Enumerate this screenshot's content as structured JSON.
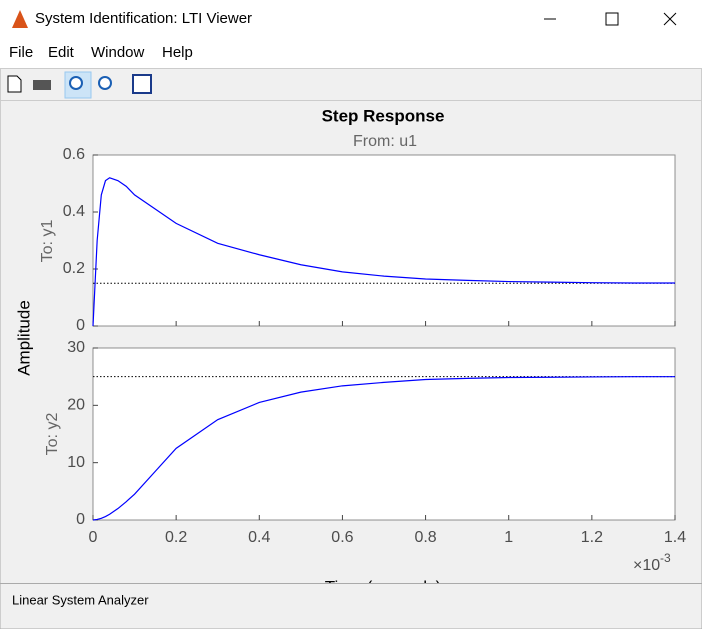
{
  "window": {
    "title": "System Identification: LTI Viewer",
    "menu": [
      "File",
      "Edit",
      "Window",
      "Help"
    ],
    "status": "Linear System Analyzer"
  },
  "chart_data": [
    {
      "type": "line",
      "title": "Step Response",
      "subtitle": "From: u1",
      "ylabel": "Amplitude",
      "panel_label": "To: y1",
      "x": [
        0,
        0.01,
        0.02,
        0.03,
        0.04,
        0.06,
        0.08,
        0.1,
        0.15,
        0.2,
        0.3,
        0.4,
        0.5,
        0.6,
        0.7,
        0.8,
        0.9,
        1.0,
        1.1,
        1.2,
        1.3,
        1.4
      ],
      "series": [
        {
          "color": "#0000ff",
          "values": [
            0,
            0.3,
            0.46,
            0.51,
            0.52,
            0.51,
            0.49,
            0.46,
            0.41,
            0.36,
            0.29,
            0.25,
            0.215,
            0.19,
            0.175,
            0.165,
            0.16,
            0.156,
            0.154,
            0.152,
            0.151,
            0.151
          ]
        }
      ],
      "steady_state": 0.15,
      "xlim": [
        0,
        1.4
      ],
      "xticks": [
        0,
        0.2,
        0.4,
        0.6,
        0.8,
        1,
        1.2,
        1.4
      ],
      "ylim": [
        0,
        0.6
      ],
      "yticks": [
        0,
        0.2,
        0.4,
        0.6
      ]
    },
    {
      "type": "line",
      "panel_label": "To: y2",
      "xlabel": "Time (seconds)",
      "x_multiplier": "×10",
      "x_exponent": "-3",
      "x": [
        0,
        0.01,
        0.02,
        0.03,
        0.04,
        0.06,
        0.08,
        0.1,
        0.15,
        0.2,
        0.3,
        0.4,
        0.5,
        0.6,
        0.7,
        0.8,
        0.9,
        1.0,
        1.1,
        1.2,
        1.3,
        1.4
      ],
      "series": [
        {
          "color": "#0000ff",
          "values": [
            0,
            0.1,
            0.3,
            0.6,
            1.0,
            2.0,
            3.2,
            4.5,
            8.5,
            12.5,
            17.5,
            20.5,
            22.3,
            23.4,
            24.0,
            24.5,
            24.7,
            24.85,
            24.9,
            24.95,
            25,
            25
          ]
        }
      ],
      "steady_state": 25,
      "xlim": [
        0,
        1.4
      ],
      "xticks": [
        0,
        0.2,
        0.4,
        0.6,
        0.8,
        1,
        1.2,
        1.4
      ],
      "ylim": [
        0,
        30
      ],
      "yticks": [
        0,
        10,
        20,
        30
      ]
    }
  ]
}
